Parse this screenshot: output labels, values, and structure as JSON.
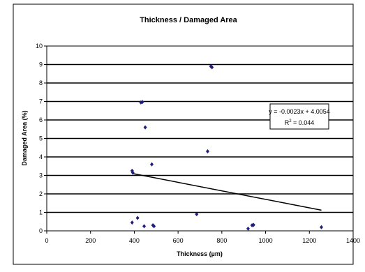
{
  "chart_data": {
    "type": "scatter",
    "title": "Thickness /  Damaged Area",
    "xlabel": "Thickness (µm)",
    "ylabel": "Damaged Area (%)",
    "xlim": [
      0,
      1400
    ],
    "ylim": [
      0,
      10
    ],
    "xticks": [
      0,
      200,
      400,
      600,
      800,
      1000,
      1200,
      1400
    ],
    "yticks": [
      0,
      1,
      2,
      3,
      4,
      5,
      6,
      7,
      8,
      9,
      10
    ],
    "grid": "horizontal",
    "points": [
      {
        "x": 750,
        "y": 8.9
      },
      {
        "x": 755,
        "y": 8.85
      },
      {
        "x": 430,
        "y": 6.95
      },
      {
        "x": 437,
        "y": 6.97
      },
      {
        "x": 450,
        "y": 5.6
      },
      {
        "x": 735,
        "y": 4.3
      },
      {
        "x": 480,
        "y": 3.6
      },
      {
        "x": 390,
        "y": 3.25
      },
      {
        "x": 393,
        "y": 3.15
      },
      {
        "x": 415,
        "y": 0.7
      },
      {
        "x": 390,
        "y": 0.45
      },
      {
        "x": 445,
        "y": 0.25
      },
      {
        "x": 485,
        "y": 0.3
      },
      {
        "x": 490,
        "y": 0.25
      },
      {
        "x": 685,
        "y": 0.9
      },
      {
        "x": 938,
        "y": 0.3
      },
      {
        "x": 945,
        "y": 0.32
      },
      {
        "x": 920,
        "y": 0.12
      },
      {
        "x": 1255,
        "y": 0.2
      }
    ],
    "trendline": {
      "slope": -0.0023,
      "intercept": 4.0054,
      "x_range": [
        390,
        1255
      ],
      "equation": "y = -0.0023x + 4.0054",
      "r_squared_prefix": "R",
      "r_squared_exp": "2",
      "r_squared_value": " = 0.044"
    },
    "colors": {
      "marker": "#1f1f7a",
      "line": "#000000",
      "grid": "#000000",
      "plot_bg": "#ffffff",
      "border": "#000000"
    }
  }
}
